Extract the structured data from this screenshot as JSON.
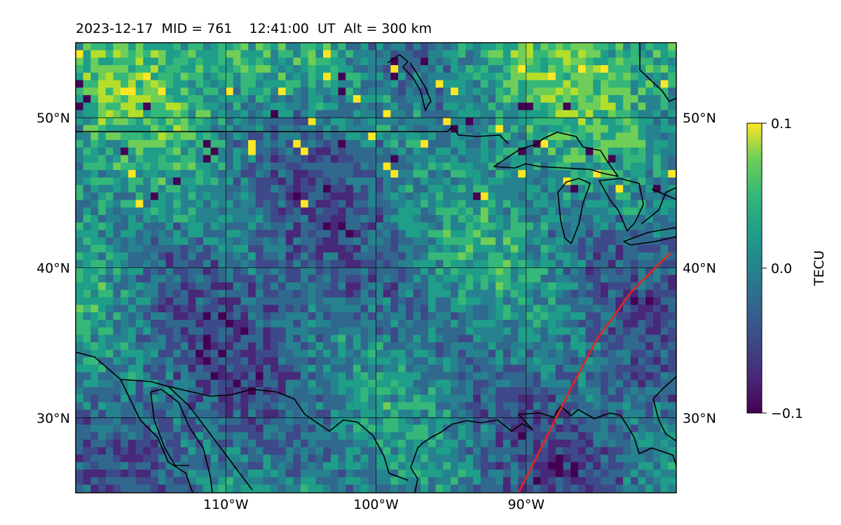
{
  "title": "2023-12-17  MID = 761    12:41:00  UT  Alt = 300 km",
  "map": {
    "lon_range": [
      -120,
      -80
    ],
    "lat_range": [
      25,
      55
    ],
    "lon_ticks": [
      {
        "value": -110,
        "label": "110°W"
      },
      {
        "value": -100,
        "label": "100°W"
      },
      {
        "value": -90,
        "label": "90°W"
      }
    ],
    "lat_ticks": [
      {
        "value": 30,
        "label": "30°N"
      },
      {
        "value": 40,
        "label": "40°N"
      },
      {
        "value": 50,
        "label": "50°N"
      }
    ],
    "gridlines": true,
    "track_color": "#e8241c",
    "track_points": [
      [
        -90.5,
        25.0
      ],
      [
        -88.7,
        28.6
      ],
      [
        -86.9,
        32.2
      ],
      [
        -85.3,
        35.2
      ],
      [
        -83.0,
        38.4
      ],
      [
        -80.4,
        41.0
      ]
    ]
  },
  "colorbar": {
    "label": "TECU",
    "min": -0.1,
    "max": 0.1,
    "colormap": "viridis",
    "ticks": [
      {
        "value": 0.1,
        "label": "0.1"
      },
      {
        "value": 0.0,
        "label": "0.0"
      },
      {
        "value": -0.1,
        "label": "−0.1"
      }
    ]
  }
}
